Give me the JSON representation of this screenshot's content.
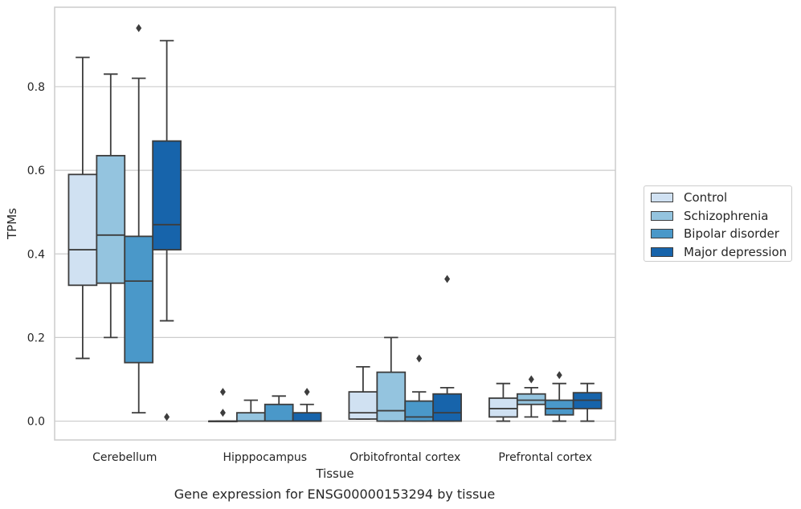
{
  "chart_data": {
    "type": "box",
    "caption": "Gene expression for ENSG00000153294 by tissue",
    "xlabel": "Tissue",
    "ylabel": "TPMs",
    "ylim": [
      -0.045,
      0.99
    ],
    "yticks": [
      0.0,
      0.2,
      0.4,
      0.6,
      0.8
    ],
    "ytick_labels": [
      "0.0",
      "0.2",
      "0.4",
      "0.6",
      "0.8"
    ],
    "grid": "horizontal",
    "legend_position": "right",
    "categories": [
      "Cerebellum",
      "Hipppocampus",
      "Orbitofrontal cortex",
      "Prefrontal cortex"
    ],
    "series": [
      {
        "name": "Control",
        "color": "#d0e1f2",
        "boxes": [
          {
            "whislo": 0.15,
            "q1": 0.325,
            "med": 0.41,
            "q3": 0.59,
            "whishi": 0.87,
            "fliers": []
          },
          {
            "whislo": 0.0,
            "q1": 0.0,
            "med": 0.0,
            "q3": 0.0,
            "whishi": 0.0,
            "fliers": [
              0.02,
              0.07
            ]
          },
          {
            "whislo": 0.005,
            "q1": 0.005,
            "med": 0.02,
            "q3": 0.07,
            "whishi": 0.13,
            "fliers": []
          },
          {
            "whislo": 0.0,
            "q1": 0.01,
            "med": 0.03,
            "q3": 0.055,
            "whishi": 0.09,
            "fliers": []
          }
        ]
      },
      {
        "name": "Schizophrenia",
        "color": "#94c4df",
        "boxes": [
          {
            "whislo": 0.2,
            "q1": 0.33,
            "med": 0.445,
            "q3": 0.635,
            "whishi": 0.83,
            "fliers": []
          },
          {
            "whislo": 0.0,
            "q1": 0.0,
            "med": 0.0,
            "q3": 0.02,
            "whishi": 0.05,
            "fliers": []
          },
          {
            "whislo": 0.0,
            "q1": 0.0,
            "med": 0.025,
            "q3": 0.117,
            "whishi": 0.2,
            "fliers": []
          },
          {
            "whislo": 0.01,
            "q1": 0.04,
            "med": 0.05,
            "q3": 0.065,
            "whishi": 0.08,
            "fliers": [
              0.1
            ]
          }
        ]
      },
      {
        "name": "Bipolar disorder",
        "color": "#4a98c9",
        "boxes": [
          {
            "whislo": 0.02,
            "q1": 0.14,
            "med": 0.335,
            "q3": 0.442,
            "whishi": 0.82,
            "fliers": [
              0.94
            ]
          },
          {
            "whislo": 0.0,
            "q1": 0.0,
            "med": 0.0,
            "q3": 0.04,
            "whishi": 0.06,
            "fliers": []
          },
          {
            "whislo": 0.0,
            "q1": 0.0,
            "med": 0.01,
            "q3": 0.048,
            "whishi": 0.07,
            "fliers": [
              0.15
            ]
          },
          {
            "whislo": 0.0,
            "q1": 0.015,
            "med": 0.03,
            "q3": 0.05,
            "whishi": 0.09,
            "fliers": [
              0.11
            ]
          }
        ]
      },
      {
        "name": "Major depression",
        "color": "#1764ab",
        "boxes": [
          {
            "whislo": 0.24,
            "q1": 0.41,
            "med": 0.47,
            "q3": 0.67,
            "whishi": 0.91,
            "fliers": [
              0.01
            ]
          },
          {
            "whislo": 0.0,
            "q1": 0.0,
            "med": 0.0,
            "q3": 0.02,
            "whishi": 0.04,
            "fliers": [
              0.07
            ]
          },
          {
            "whislo": 0.0,
            "q1": 0.0,
            "med": 0.02,
            "q3": 0.065,
            "whishi": 0.08,
            "fliers": [
              0.34
            ]
          },
          {
            "whislo": 0.0,
            "q1": 0.03,
            "med": 0.05,
            "q3": 0.068,
            "whishi": 0.09,
            "fliers": []
          }
        ]
      }
    ]
  }
}
